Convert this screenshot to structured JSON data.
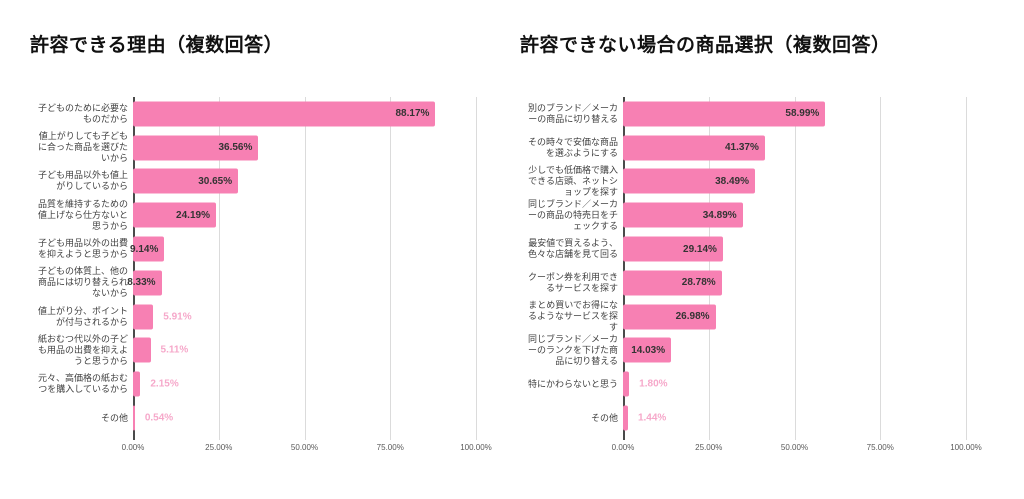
{
  "colors": {
    "bar": "#F780B3",
    "value_label_inside": "#333333",
    "value_label_outside": "#F6A8CA",
    "gridline": "#DBDBDB",
    "axis_line": "#4A4A4A",
    "tick_text": "#595959",
    "category_text": "#3F3F3F",
    "title_text": "#111111"
  },
  "chart_data": [
    {
      "type": "bar",
      "orientation": "horizontal",
      "title": "許容できる理由（複数回答）",
      "categories": [
        "子どものために必要なものだから",
        "値上がりしても子どもに合った商品を選びたいから",
        "子ども用品以外も値上がりしているから",
        "品質を維持するための値上げなら仕方ないと思うから",
        "子ども用品以外の出費を抑えようと思うから",
        "子どもの体質上、他の商品には切り替えられないから",
        "値上がり分、ポイントが付与されるから",
        "紙おむつ代以外の子ども用品の出費を抑えようと思うから",
        "元々、高価格の紙おむつを購入しているから",
        "その他"
      ],
      "values": [
        88.17,
        36.56,
        30.65,
        24.19,
        9.14,
        8.33,
        5.91,
        5.11,
        2.15,
        0.54
      ],
      "value_labels": [
        "88.17%",
        "36.56%",
        "30.65%",
        "24.19%",
        "9.14%",
        "8.33%",
        "5.91%",
        "5.11%",
        "2.15%",
        "0.54%"
      ],
      "value_label_inside": [
        true,
        true,
        true,
        true,
        true,
        true,
        false,
        false,
        false,
        false
      ],
      "x_ticks": [
        "0.00%",
        "25.00%",
        "50.00%",
        "75.00%",
        "100.00%"
      ],
      "xlim": [
        0,
        100
      ],
      "grid": true,
      "legend": false
    },
    {
      "type": "bar",
      "orientation": "horizontal",
      "title": "許容できない場合の商品選択（複数回答）",
      "categories": [
        "別のブランド／メーカーの商品に切り替える",
        "その時々で安価な商品を選ぶようにする",
        "少しでも低価格で購入できる店頭、ネットショップを探す",
        "同じブランド／メーカーの商品の特売日をチェックする",
        "最安値で買えるよう、色々な店舗を見て回る",
        "クーポン券を利用できるサービスを探す",
        "まとめ買いでお得になるようなサービスを探す",
        "同じブランド／メーカーのランクを下げた商品に切り替える",
        "特にかわらないと思う",
        "その他"
      ],
      "values": [
        58.99,
        41.37,
        38.49,
        34.89,
        29.14,
        28.78,
        26.98,
        14.03,
        1.8,
        1.44
      ],
      "value_labels": [
        "58.99%",
        "41.37%",
        "38.49%",
        "34.89%",
        "29.14%",
        "28.78%",
        "26.98%",
        "14.03%",
        "1.80%",
        "1.44%"
      ],
      "value_label_inside": [
        true,
        true,
        true,
        true,
        true,
        true,
        true,
        true,
        false,
        false
      ],
      "x_ticks": [
        "0.00%",
        "25.00%",
        "50.00%",
        "75.00%",
        "100.00%"
      ],
      "xlim": [
        0,
        100
      ],
      "grid": true,
      "legend": false
    }
  ]
}
